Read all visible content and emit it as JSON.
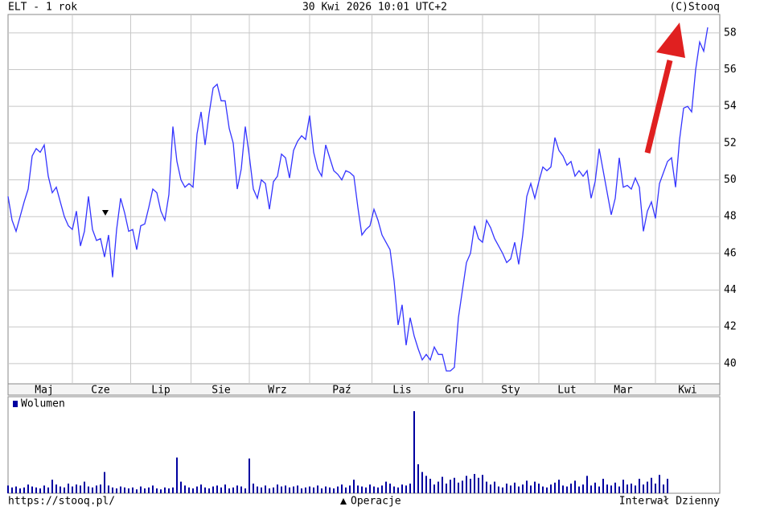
{
  "chart_data": [
    {
      "type": "line",
      "title": "ELT - 1 rok",
      "date": "30 Kwi 2026 10:01 UTC+2",
      "source": "(C)Stooq",
      "color": "#3535ff",
      "categories": [
        null,
        null,
        null,
        null,
        null,
        null,
        null,
        null,
        null,
        "Maj",
        null,
        null,
        null,
        null,
        null,
        null,
        null,
        null,
        null,
        null,
        null,
        null,
        null,
        "Cze",
        null,
        null,
        null,
        null,
        null,
        null,
        null,
        null,
        null,
        null,
        null,
        null,
        null,
        null,
        "Lip",
        null,
        null,
        null,
        null,
        null,
        null,
        null,
        null,
        null,
        null,
        null,
        null,
        null,
        null,
        "Sie",
        null,
        null,
        null,
        null,
        null,
        null,
        null,
        null,
        null,
        null,
        null,
        null,
        null,
        "Wrz",
        null,
        null,
        null,
        null,
        null,
        null,
        null,
        null,
        null,
        null,
        null,
        null,
        null,
        null,
        null,
        "Paź",
        null,
        null,
        null,
        null,
        null,
        null,
        null,
        null,
        null,
        null,
        null,
        null,
        null,
        null,
        "Lis",
        null,
        null,
        null,
        null,
        null,
        null,
        null,
        null,
        null,
        null,
        null,
        null,
        "Gru",
        null,
        null,
        null,
        null,
        null,
        null,
        null,
        null,
        null,
        null,
        null,
        null,
        null,
        "Sty",
        null,
        null,
        null,
        null,
        null,
        null,
        null,
        null,
        null,
        null,
        null,
        null,
        null,
        "Lut",
        null,
        null,
        null,
        null,
        null,
        null,
        null,
        null,
        null,
        null,
        null,
        null,
        null,
        "Mar",
        null,
        null,
        null,
        null,
        null,
        null,
        null,
        null,
        null,
        null,
        null,
        null,
        null,
        null,
        null,
        "Kwi",
        null,
        null,
        null,
        null,
        null
      ],
      "values": [
        49.1,
        47.8,
        47.2,
        48.0,
        48.8,
        49.5,
        51.3,
        51.7,
        51.5,
        51.9,
        50.2,
        49.3,
        49.6,
        48.8,
        48.0,
        47.5,
        47.3,
        48.3,
        46.4,
        47.2,
        49.1,
        47.3,
        46.7,
        46.8,
        45.8,
        47.0,
        44.7,
        47.3,
        49.0,
        48.2,
        47.2,
        47.3,
        46.2,
        47.5,
        47.6,
        48.5,
        49.5,
        49.3,
        48.3,
        47.8,
        49.2,
        52.9,
        51.0,
        50.0,
        49.6,
        49.8,
        49.6,
        52.5,
        53.7,
        51.9,
        53.6,
        55.0,
        55.2,
        54.3,
        54.3,
        52.8,
        52.0,
        49.5,
        50.6,
        52.9,
        51.3,
        49.5,
        49.0,
        50.0,
        49.8,
        48.4,
        49.9,
        50.2,
        51.4,
        51.2,
        50.1,
        51.6,
        52.1,
        52.4,
        52.2,
        53.5,
        51.5,
        50.6,
        50.2,
        51.9,
        51.2,
        50.5,
        50.3,
        50.0,
        50.5,
        50.4,
        50.2,
        48.5,
        47.0,
        47.3,
        47.5,
        48.4,
        47.8,
        47.0,
        46.6,
        46.2,
        44.5,
        42.1,
        43.2,
        41.0,
        42.5,
        41.5,
        40.8,
        40.2,
        40.5,
        40.2,
        40.9,
        40.5,
        40.5,
        39.6,
        39.6,
        39.8,
        42.5,
        44.0,
        45.5,
        46.0,
        47.5,
        46.8,
        46.6,
        47.8,
        47.4,
        46.8,
        46.4,
        46.0,
        45.5,
        45.7,
        46.6,
        45.4,
        47.0,
        49.1,
        49.8,
        49.0,
        49.9,
        50.7,
        50.5,
        50.7,
        52.3,
        51.6,
        51.3,
        50.8,
        51.0,
        50.2,
        50.5,
        50.2,
        50.5,
        49.0,
        49.9,
        51.7,
        50.5,
        49.3,
        48.1,
        49.0,
        51.2,
        49.6,
        49.7,
        49.5,
        50.1,
        49.6,
        47.2,
        48.3,
        48.8,
        47.9,
        49.8,
        50.4,
        51.0,
        51.2,
        49.6,
        52.2,
        53.9,
        54.0,
        53.7,
        56.0,
        57.5,
        57.0,
        58.3
      ],
      "ylim": [
        38.9,
        59.0
      ],
      "yticks": [
        40,
        42,
        44,
        46,
        48,
        50,
        52,
        54,
        56,
        58
      ],
      "grid": true
    },
    {
      "type": "bar",
      "title": "Wolumen",
      "color": "#0000a0",
      "ylim": [
        0,
        100
      ],
      "values": [
        8,
        6,
        7,
        5,
        6,
        9,
        7,
        6,
        5,
        8,
        6,
        14,
        9,
        7,
        6,
        10,
        7,
        9,
        8,
        12,
        7,
        6,
        8,
        9,
        22,
        8,
        6,
        5,
        7,
        6,
        5,
        6,
        4,
        7,
        5,
        6,
        8,
        5,
        4,
        6,
        5,
        6,
        37,
        12,
        8,
        6,
        5,
        7,
        9,
        6,
        5,
        7,
        8,
        6,
        9,
        5,
        6,
        8,
        7,
        5,
        36,
        10,
        7,
        6,
        8,
        5,
        6,
        9,
        7,
        8,
        6,
        7,
        8,
        5,
        6,
        7,
        6,
        8,
        5,
        7,
        6,
        5,
        7,
        9,
        6,
        8,
        14,
        8,
        7,
        6,
        9,
        7,
        6,
        8,
        12,
        10,
        7,
        6,
        9,
        8,
        10,
        85,
        30,
        22,
        18,
        15,
        9,
        12,
        17,
        10,
        14,
        16,
        11,
        13,
        18,
        15,
        20,
        16,
        19,
        12,
        9,
        12,
        7,
        6,
        10,
        8,
        11,
        7,
        9,
        13,
        8,
        12,
        10,
        7,
        6,
        9,
        11,
        14,
        8,
        7,
        10,
        13,
        7,
        9,
        18,
        8,
        11,
        7,
        15,
        9,
        8,
        11,
        7,
        14,
        9,
        10,
        8,
        15,
        9,
        12,
        16,
        10,
        19,
        9,
        15
      ]
    }
  ],
  "footer": {
    "url": "https://stooq.pl/",
    "operations": "Operacje",
    "interval": "Interwał Dzienny"
  }
}
